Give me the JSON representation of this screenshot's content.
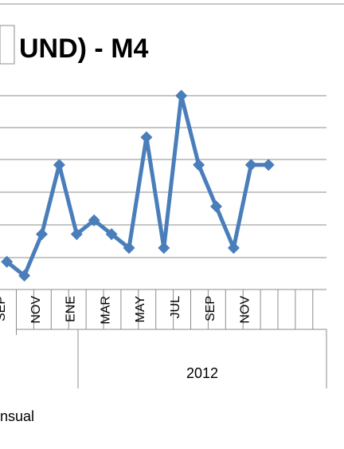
{
  "chart_data": {
    "type": "line",
    "title": "UND) - M4",
    "x_month_labels": [
      "SEP",
      "",
      "NOV",
      "",
      "ENE",
      "",
      "MAR",
      "",
      "MAY",
      "",
      "JUL",
      "",
      "SEP",
      "",
      "NOV",
      ""
    ],
    "year_labels": [
      "2012"
    ],
    "series": [
      {
        "name": "nsual",
        "values": [
          3,
          2,
          5,
          10,
          5,
          6,
          5,
          4,
          12,
          4,
          15,
          10,
          7,
          4,
          10,
          10
        ]
      }
    ],
    "ylim": [
      1,
      15
    ],
    "grid": true,
    "legend_position": "bottom"
  },
  "colors": {
    "series": "#4a7ebb",
    "grid": "#8c8c8c"
  }
}
